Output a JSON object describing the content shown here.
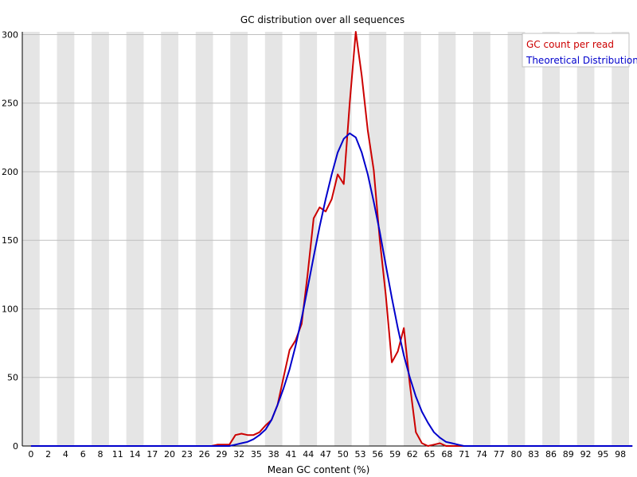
{
  "chart_data": {
    "type": "line",
    "title": "GC distribution over all sequences",
    "xlabel": "Mean GC content (%)",
    "ylabel": "",
    "xlim": [
      0,
      100
    ],
    "ylim": [
      0,
      302
    ],
    "yticks": [
      0,
      50,
      100,
      150,
      200,
      250,
      300
    ],
    "xtick_labels": [
      "0",
      "2",
      "4",
      "6",
      "8",
      "11",
      "14",
      "17",
      "20",
      "23",
      "26",
      "29",
      "32",
      "35",
      "38",
      "41",
      "44",
      "47",
      "50",
      "53",
      "56",
      "59",
      "62",
      "65",
      "68",
      "71",
      "74",
      "77",
      "80",
      "83",
      "86",
      "89",
      "92",
      "95",
      "98"
    ],
    "colors": {
      "gc_count": "#cc0000",
      "theoretical": "#0000cc",
      "stripe": "#e5e5e5",
      "gridline": "#c0c0c0"
    },
    "legend_position": "top-right",
    "series": [
      {
        "name": "GC count per read",
        "color": "#cc0000",
        "x": [
          0,
          1,
          2,
          3,
          4,
          5,
          6,
          7,
          8,
          9,
          10,
          11,
          12,
          13,
          14,
          15,
          16,
          17,
          18,
          19,
          20,
          21,
          22,
          23,
          24,
          25,
          26,
          27,
          28,
          29,
          30,
          31,
          32,
          33,
          34,
          35,
          36,
          37,
          38,
          39,
          40,
          41,
          42,
          43,
          44,
          45,
          46,
          47,
          48,
          49,
          50,
          51,
          52,
          53,
          54,
          55,
          56,
          57,
          58,
          59,
          60,
          61,
          62,
          63,
          64,
          65,
          66,
          67,
          68,
          69,
          70,
          71,
          72,
          73,
          74,
          75,
          76,
          77,
          78,
          79,
          80,
          81,
          82,
          83,
          84,
          85,
          86,
          87,
          88,
          89,
          90,
          91,
          92,
          93,
          94,
          95,
          96,
          97,
          98,
          99,
          100
        ],
        "values": [
          0,
          0,
          0,
          0,
          0,
          0,
          0,
          0,
          0,
          0,
          0,
          0,
          0,
          0,
          0,
          0,
          0,
          0,
          0,
          0,
          0,
          0,
          0,
          0,
          0,
          0,
          0,
          0,
          0,
          0,
          0,
          1,
          1,
          1,
          8,
          9,
          8,
          8,
          10,
          15,
          19,
          30,
          50,
          70,
          77,
          89,
          125,
          166,
          174,
          171,
          180,
          198,
          191,
          250,
          302,
          270,
          230,
          201,
          150,
          110,
          61,
          69,
          86,
          45,
          10,
          2,
          0,
          1,
          2,
          0,
          0,
          0,
          0,
          0,
          0,
          0,
          0,
          0,
          0,
          0,
          0,
          0,
          0,
          0,
          0,
          0,
          0,
          0,
          0,
          0,
          0,
          0,
          0,
          0,
          0,
          0,
          0,
          0,
          0,
          0,
          0
        ]
      },
      {
        "name": "Theoretical Distribution",
        "color": "#0000cc",
        "x": [
          0,
          1,
          2,
          3,
          4,
          5,
          6,
          7,
          8,
          9,
          10,
          11,
          12,
          13,
          14,
          15,
          16,
          17,
          18,
          19,
          20,
          21,
          22,
          23,
          24,
          25,
          26,
          27,
          28,
          29,
          30,
          31,
          32,
          33,
          34,
          35,
          36,
          37,
          38,
          39,
          40,
          41,
          42,
          43,
          44,
          45,
          46,
          47,
          48,
          49,
          50,
          51,
          52,
          53,
          54,
          55,
          56,
          57,
          58,
          59,
          60,
          61,
          62,
          63,
          64,
          65,
          66,
          67,
          68,
          69,
          70,
          71,
          72,
          73,
          74,
          75,
          76,
          77,
          78,
          79,
          80,
          81,
          82,
          83,
          84,
          85,
          86,
          87,
          88,
          89,
          90,
          91,
          92,
          93,
          94,
          95,
          96,
          97,
          98,
          99,
          100
        ],
        "values": [
          0,
          0,
          0,
          0,
          0,
          0,
          0,
          0,
          0,
          0,
          0,
          0,
          0,
          0,
          0,
          0,
          0,
          0,
          0,
          0,
          0,
          0,
          0,
          0,
          0,
          0,
          0,
          0,
          0,
          0,
          0,
          0,
          0,
          0,
          1,
          2,
          3,
          5,
          8,
          12,
          19,
          30,
          42,
          56,
          73,
          93,
          115,
          138,
          160,
          180,
          198,
          214,
          224,
          228,
          225,
          214,
          198,
          178,
          156,
          132,
          108,
          86,
          66,
          50,
          36,
          25,
          17,
          10,
          6,
          3,
          2,
          1,
          0,
          0,
          0,
          0,
          0,
          0,
          0,
          0,
          0,
          0,
          0,
          0,
          0,
          0,
          0,
          0,
          0,
          0,
          0,
          0,
          0,
          0,
          0,
          0,
          0,
          0,
          0,
          0,
          0
        ]
      }
    ]
  }
}
